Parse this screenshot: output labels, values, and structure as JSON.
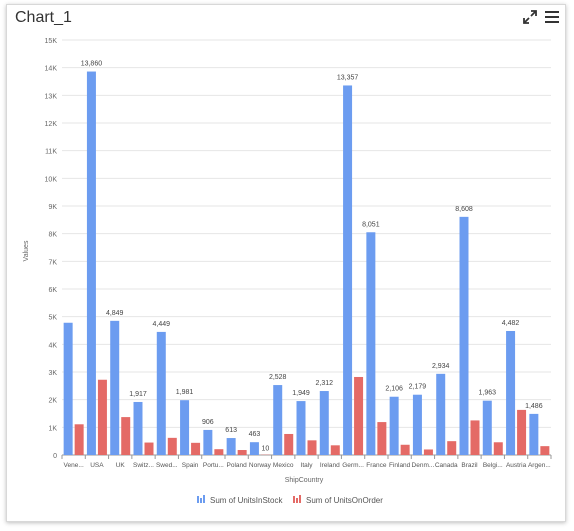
{
  "widget": {
    "title": "Chart_1",
    "expand_icon": "expand-icon",
    "menu_icon": "hamburger-menu-icon"
  },
  "chart_data": {
    "type": "bar",
    "categories": [
      "Vene...",
      "USA",
      "UK",
      "Switz...",
      "Swed...",
      "Spain",
      "Portu...",
      "Poland",
      "Norway",
      "Mexico",
      "Italy",
      "Ireland",
      "Germ...",
      "France",
      "Finland",
      "Denm...",
      "Canada",
      "Brazil",
      "Belgi...",
      "Austria",
      "Argen..."
    ],
    "series": [
      {
        "name": "Sum of UnitsInStock",
        "color": "#6c9cf0",
        "values": [
          4780,
          13860,
          4849,
          1917,
          4449,
          1981,
          906,
          613,
          463,
          2528,
          1949,
          2312,
          13357,
          8051,
          2106,
          2179,
          2934,
          8608,
          1963,
          4482,
          1486
        ]
      },
      {
        "name": "Sum of UnitsOnOrder",
        "color": "#e46a66",
        "values": [
          1110,
          2720,
          1370,
          450,
          620,
          440,
          210,
          180,
          10,
          760,
          530,
          350,
          2820,
          1190,
          370,
          200,
          500,
          1250,
          460,
          1630,
          320
        ]
      }
    ],
    "data_labels": [
      "",
      "13,860",
      "4,849",
      "1,917",
      "4,449",
      "1,981",
      "906",
      "613",
      "463",
      "2,528",
      "1,949",
      "2,312",
      "13,357",
      "8,051",
      "2,106",
      "2,179",
      "2,934",
      "8,608",
      "1,963",
      "4,482",
      "1,486"
    ],
    "secondary_label": {
      "index": 8,
      "text": "10"
    },
    "yticks": [
      "0",
      "1K",
      "2K",
      "3K",
      "4K",
      "5K",
      "6K",
      "7K",
      "8K",
      "9K",
      "10K",
      "11K",
      "12K",
      "13K",
      "14K",
      "15K"
    ],
    "ylim": [
      0,
      15000
    ],
    "xlabel": "ShipCountry",
    "ylabel": "Values",
    "grid": true,
    "legend_position": "bottom"
  }
}
